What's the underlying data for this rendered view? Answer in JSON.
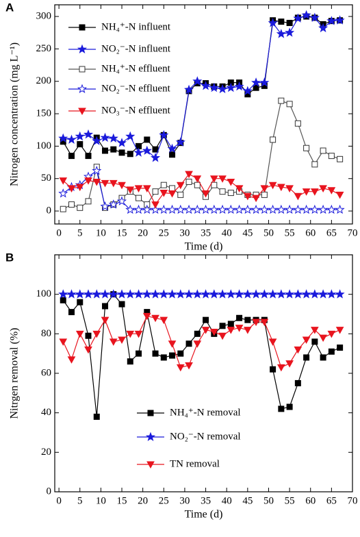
{
  "chart_data": [
    {
      "type": "line",
      "panel_label": "A",
      "xlabel": "Time (d)",
      "ylabel": "Nitrogen concentration (mg L⁻¹)",
      "xlim": [
        -1,
        70
      ],
      "ylim": [
        -20,
        318
      ],
      "xticks": [
        0,
        5,
        10,
        15,
        20,
        25,
        30,
        35,
        40,
        45,
        50,
        55,
        60,
        65,
        70
      ],
      "yticks": [
        0,
        50,
        100,
        150,
        200,
        250,
        300
      ],
      "x": [
        1,
        3,
        5,
        7,
        9,
        11,
        13,
        15,
        17,
        19,
        21,
        23,
        25,
        27,
        29,
        31,
        33,
        35,
        37,
        39,
        41,
        43,
        45,
        47,
        49,
        51,
        53,
        55,
        57,
        59,
        61,
        63,
        65,
        67
      ],
      "series": [
        {
          "name": "NH₄⁺-N influent",
          "color": "#000000",
          "marker": "square",
          "filled": true,
          "values": [
            107,
            85,
            103,
            85,
            113,
            93,
            95,
            90,
            88,
            100,
            110,
            95,
            117,
            87,
            105,
            185,
            197,
            197,
            192,
            192,
            198,
            198,
            180,
            190,
            193,
            294,
            292,
            290,
            298,
            300,
            298,
            288,
            293,
            294
          ]
        },
        {
          "name": "NO₂⁻-N influent",
          "color": "#1a1adb",
          "marker": "star",
          "filled": true,
          "values": [
            112,
            110,
            115,
            118,
            108,
            113,
            112,
            105,
            115,
            90,
            93,
            82,
            117,
            96,
            106,
            187,
            200,
            193,
            190,
            188,
            190,
            192,
            185,
            198,
            198,
            290,
            273,
            275,
            297,
            302,
            298,
            282,
            293,
            294
          ]
        },
        {
          "name": "NH₄⁺-N effluent",
          "color": "#555555",
          "marker": "square",
          "filled": false,
          "values": [
            3,
            10,
            5,
            15,
            68,
            5,
            10,
            20,
            30,
            20,
            10,
            30,
            40,
            35,
            25,
            45,
            40,
            22,
            40,
            30,
            28,
            30,
            25,
            25,
            25,
            110,
            170,
            165,
            135,
            97,
            72,
            93,
            85,
            80
          ]
        },
        {
          "name": "NO₂⁻-N effluent",
          "color": "#1a1adb",
          "marker": "star",
          "filled": false,
          "values": [
            27,
            37,
            40,
            53,
            62,
            7,
            10,
            15,
            2,
            2,
            2,
            2,
            2,
            2,
            2,
            2,
            2,
            2,
            2,
            2,
            2,
            2,
            2,
            2,
            2,
            2,
            2,
            2,
            2,
            2,
            2,
            2,
            2,
            2
          ]
        },
        {
          "name": "NO₃⁻-N effluent",
          "color": "#e8141e",
          "marker": "triangle",
          "filled": true,
          "values": [
            47,
            35,
            37,
            47,
            45,
            43,
            43,
            40,
            33,
            35,
            35,
            10,
            28,
            27,
            40,
            57,
            50,
            27,
            50,
            50,
            45,
            35,
            23,
            20,
            35,
            40,
            37,
            35,
            23,
            30,
            30,
            35,
            32,
            25
          ]
        }
      ]
    },
    {
      "type": "line",
      "panel_label": "B",
      "xlabel": "Time (d)",
      "ylabel": "Nitrgen removal (%)",
      "xlim": [
        -1,
        70
      ],
      "ylim": [
        0,
        120
      ],
      "xticks": [
        0,
        5,
        10,
        15,
        20,
        25,
        30,
        35,
        40,
        45,
        50,
        55,
        60,
        65,
        70
      ],
      "yticks": [
        0,
        20,
        40,
        60,
        80,
        100
      ],
      "x": [
        1,
        3,
        5,
        7,
        9,
        11,
        13,
        15,
        17,
        19,
        21,
        23,
        25,
        27,
        29,
        31,
        33,
        35,
        37,
        39,
        41,
        43,
        45,
        47,
        49,
        51,
        53,
        55,
        57,
        59,
        61,
        63,
        65,
        67
      ],
      "series": [
        {
          "name": "NH₄⁺-N removal",
          "color": "#000000",
          "marker": "square",
          "filled": true,
          "values": [
            97,
            91,
            96,
            79,
            38,
            94,
            100,
            95,
            66,
            70,
            91,
            70,
            68,
            69,
            70,
            75,
            80,
            87,
            80,
            84,
            85,
            88,
            87,
            87,
            87,
            62,
            42,
            43,
            55,
            68,
            76,
            68,
            71,
            73
          ]
        },
        {
          "name": "NO₂⁻-N removal",
          "color": "#1a1adb",
          "marker": "star",
          "filled": true,
          "values": [
            100,
            100,
            100,
            100,
            100,
            100,
            100,
            100,
            100,
            100,
            100,
            100,
            100,
            100,
            100,
            100,
            100,
            100,
            100,
            100,
            100,
            100,
            100,
            100,
            100,
            100,
            100,
            100,
            100,
            100,
            100,
            100,
            100,
            100
          ]
        },
        {
          "name": "TN removal",
          "color": "#e8141e",
          "marker": "triangle",
          "filled": true,
          "values": [
            76,
            67,
            80,
            72,
            80,
            87,
            76,
            77,
            80,
            80,
            89,
            88,
            87,
            75,
            63,
            64,
            75,
            82,
            81,
            79,
            82,
            83,
            82,
            86,
            86,
            76,
            63,
            65,
            72,
            77,
            82,
            78,
            80,
            82
          ]
        }
      ]
    }
  ]
}
